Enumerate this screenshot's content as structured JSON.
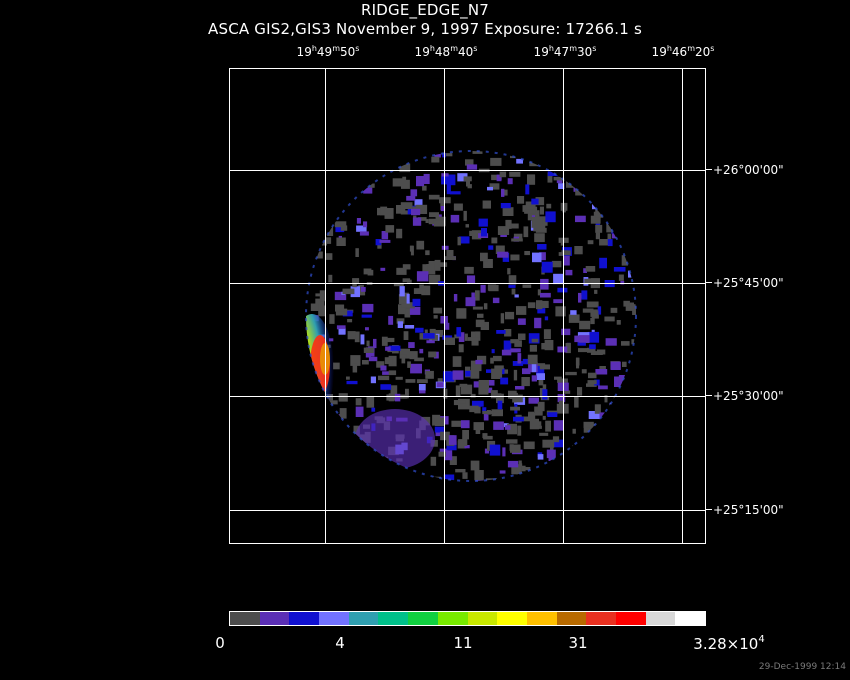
{
  "header": {
    "title": "RIDGE_EDGE_N7",
    "subtitle": "ASCA GIS2,GIS3 November 9, 1997 Exposure: 17266.1 s"
  },
  "ra_ticks": [
    {
      "h": "19",
      "m": "49",
      "s": "50"
    },
    {
      "h": "19",
      "m": "48",
      "s": "40"
    },
    {
      "h": "19",
      "m": "47",
      "s": "30"
    },
    {
      "h": "19",
      "m": "46",
      "s": "20"
    }
  ],
  "dec_ticks": [
    "+26°00'00\"",
    "+25°45'00\"",
    "+25°30'00\"",
    "+25°15'00\""
  ],
  "colorbar": {
    "colors": [
      "#4d4d4d",
      "#5b2fb5",
      "#1010d0",
      "#7272ff",
      "#2f9fb0",
      "#00c08a",
      "#10d040",
      "#78ea00",
      "#c8e800",
      "#ffff00",
      "#ffc000",
      "#b86a00",
      "#e83020",
      "#ff0000",
      "#d8d8d8",
      "#ffffff"
    ],
    "labels": {
      "l0": "0",
      "l1": "4",
      "l2": "11",
      "l3": "31",
      "l4_mantissa": "3.28×10",
      "l4_exp": "4"
    }
  },
  "timestamp": "29-Dec-1999 12:14"
}
